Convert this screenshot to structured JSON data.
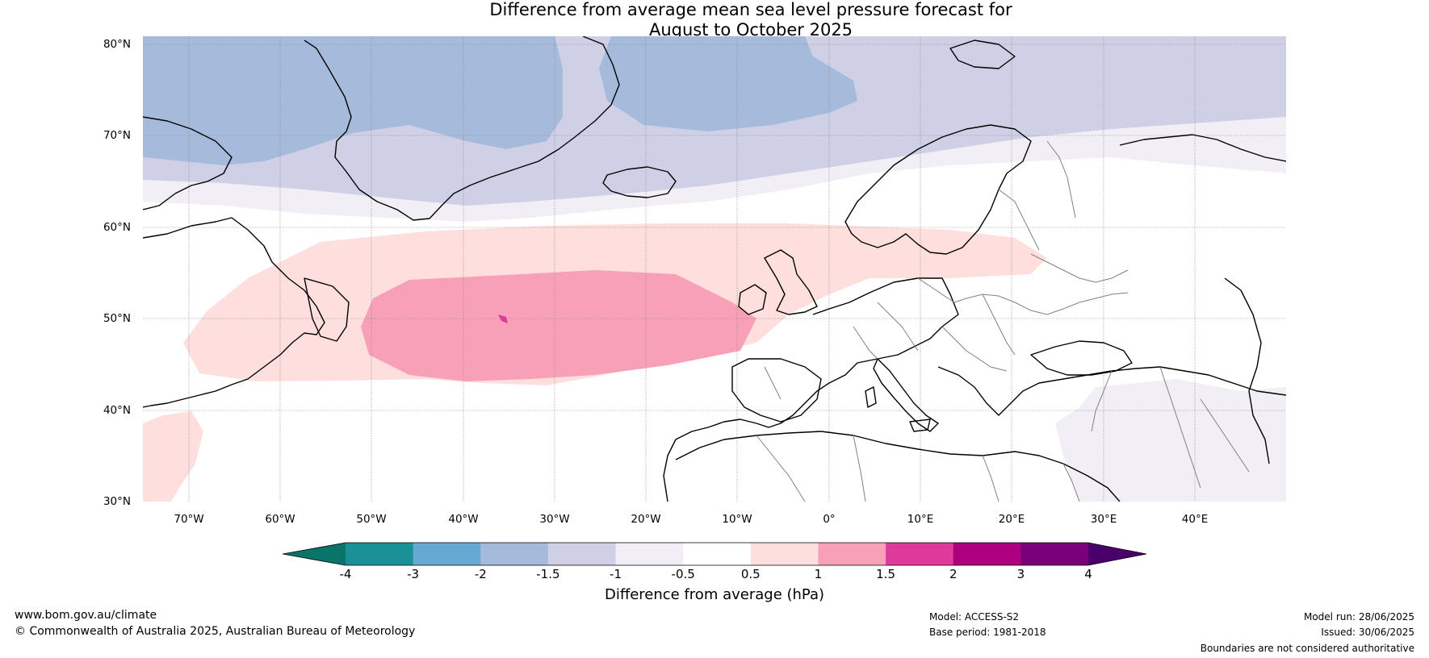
{
  "title_line1": "Difference from average mean sea level pressure forecast for",
  "title_line2": "August to October 2025",
  "lat_labels": [
    "80°N",
    "70°N",
    "60°N",
    "50°N",
    "40°N",
    "30°N"
  ],
  "lon_labels": [
    "70°W",
    "60°W",
    "50°W",
    "40°W",
    "30°W",
    "20°W",
    "10°W",
    "0°",
    "10°E",
    "20°E",
    "30°E",
    "40°E"
  ],
  "colorbar": {
    "ticks": [
      "-4",
      "-3",
      "-2",
      "-1.5",
      "-1",
      "-0.5",
      "0.5",
      "1",
      "1.5",
      "2",
      "3",
      "4"
    ],
    "low_extend_color": "#0a7468",
    "high_extend_color": "#4a006a",
    "colors": [
      "#1a9196",
      "#66a9d3",
      "#a6bbdc",
      "#cfd0e6",
      "#f2eef5",
      "#ffffff",
      "#ffdede",
      "#f9a0b9",
      "#dd3a9b",
      "#ad0080",
      "#7a007a"
    ],
    "label": "Difference from average (hPa)"
  },
  "footer": {
    "website": "www.bom.gov.au/climate",
    "copyright": "© Commonwealth of Australia 2025, Australian Bureau of Meteorology",
    "model": "Model: ACCESS-S2",
    "base_period": "Base period: 1981-2018",
    "model_run": "Model run: 28/06/2025",
    "issued": "Issued: 30/06/2025",
    "boundaries_note": "Boundaries are not considered authoritative"
  }
}
